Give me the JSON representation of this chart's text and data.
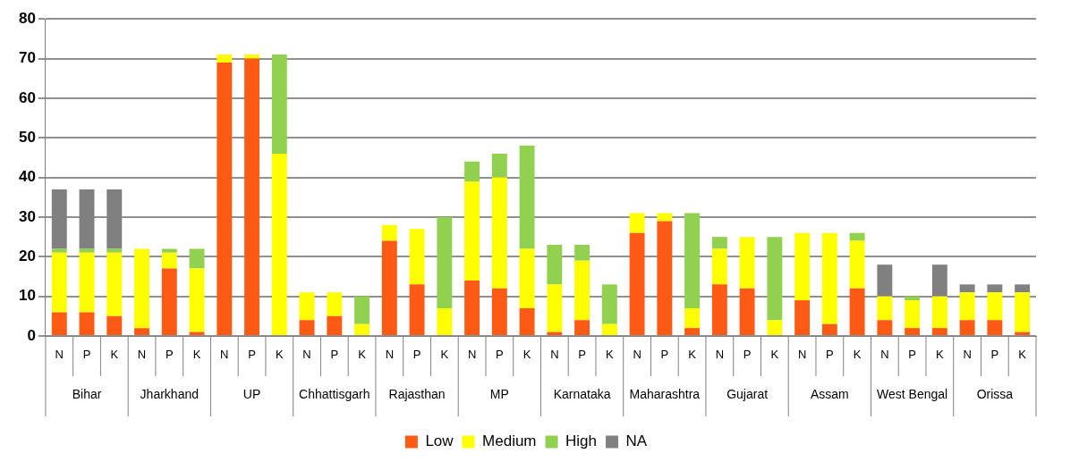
{
  "chart_data": {
    "type": "bar",
    "stacked": true,
    "categories": [
      "N",
      "P",
      "K",
      "N",
      "P",
      "K",
      "N",
      "P",
      "K",
      "N",
      "P",
      "K",
      "N",
      "P",
      "K",
      "N",
      "P",
      "K",
      "N",
      "P",
      "K",
      "N",
      "P",
      "K",
      "N",
      "P",
      "K",
      "N",
      "P",
      "K",
      "N",
      "P",
      "K",
      "N",
      "P",
      "K"
    ],
    "annotations": [
      "Bihar",
      "Jharkhand",
      "UP",
      "Chhattisgarh",
      "Rajasthan",
      "MP",
      "Karnataka",
      "Maharashtra",
      "Gujarat",
      "Assam",
      "West Bengal",
      "Orissa"
    ],
    "series": [
      {
        "name": "Low",
        "color": "#fd5a14",
        "values": [
          6,
          6,
          5,
          2,
          17,
          1,
          69,
          70,
          0,
          4,
          5,
          0,
          24,
          13,
          0,
          14,
          12,
          7,
          1,
          4,
          0,
          26,
          29,
          2,
          13,
          12,
          0,
          9,
          3,
          12,
          4,
          2,
          2,
          4,
          4,
          1
        ]
      },
      {
        "name": "Medium",
        "color": "#ffff00",
        "values": [
          15,
          15,
          16,
          20,
          4,
          16,
          2,
          1,
          46,
          7,
          6,
          3,
          4,
          14,
          7,
          25,
          28,
          15,
          12,
          15,
          3,
          5,
          2,
          5,
          9,
          13,
          4,
          17,
          23,
          12,
          6,
          7,
          8,
          7,
          7,
          10
        ]
      },
      {
        "name": "High",
        "color": "#92d050",
        "values": [
          1,
          1,
          1,
          0,
          1,
          5,
          0,
          0,
          25,
          0,
          0,
          7,
          0,
          0,
          23,
          5,
          6,
          26,
          10,
          4,
          10,
          0,
          0,
          24,
          3,
          0,
          21,
          0,
          0,
          2,
          0,
          1,
          0,
          0,
          0,
          0
        ]
      },
      {
        "name": "NA",
        "color": "#808080",
        "values": [
          15,
          15,
          15,
          0,
          0,
          0,
          0,
          0,
          0,
          0,
          0,
          0,
          0,
          0,
          0,
          0,
          0,
          0,
          0,
          0,
          0,
          0,
          0,
          0,
          0,
          0,
          0,
          0,
          0,
          0,
          8,
          0,
          8,
          2,
          2,
          2
        ]
      }
    ],
    "ylim": [
      0,
      80
    ],
    "yticks": [
      0,
      10,
      20,
      30,
      40,
      50,
      60,
      70,
      80
    ],
    "grid": "y",
    "legend": "bottom"
  }
}
